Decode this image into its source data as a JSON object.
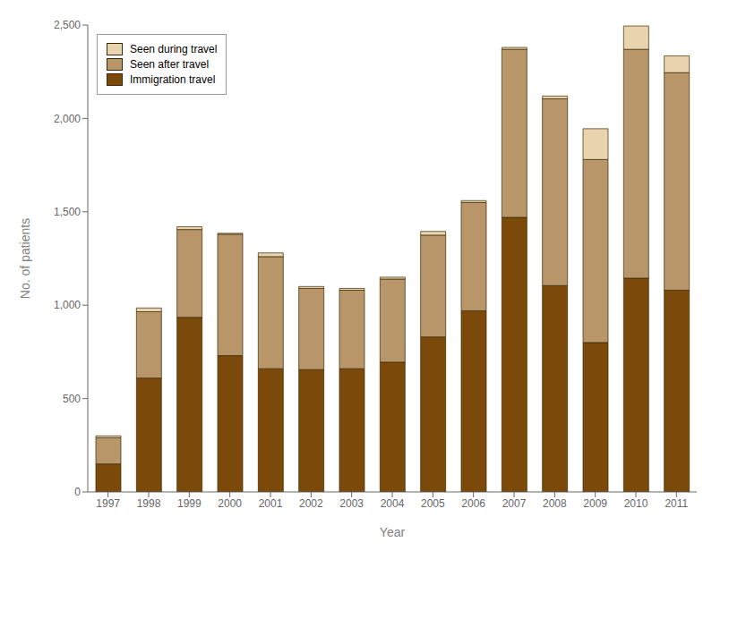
{
  "chart_data": {
    "type": "bar",
    "stacked": true,
    "xlabel": "Year",
    "ylabel": "No. of patients",
    "categories": [
      "1997",
      "1998",
      "1999",
      "2000",
      "2001",
      "2002",
      "2003",
      "2004",
      "2005",
      "2006",
      "2007",
      "2008",
      "2009",
      "2010",
      "2011"
    ],
    "series": [
      {
        "name": "Immigration travel",
        "color": "#7B4A0A",
        "values": [
          150,
          610,
          935,
          730,
          660,
          655,
          660,
          695,
          830,
          970,
          1470,
          1105,
          800,
          1145,
          1080
        ]
      },
      {
        "name": "Seen after travel",
        "color": "#B8966A",
        "values": [
          140,
          355,
          470,
          650,
          600,
          435,
          420,
          445,
          545,
          580,
          900,
          1000,
          980,
          1225,
          1165
        ]
      },
      {
        "name": "Seen during travel",
        "color": "#E8D5B0",
        "values": [
          10,
          20,
          15,
          5,
          20,
          10,
          10,
          10,
          20,
          10,
          10,
          15,
          165,
          125,
          90
        ]
      }
    ],
    "ylim": [
      0,
      2500
    ],
    "yticks": [
      0,
      500,
      {
        "value": 1000,
        "label": "1,000"
      },
      {
        "value": 1500,
        "label": "1,500"
      },
      {
        "value": 2000,
        "label": "2,000"
      },
      {
        "value": 2500,
        "label": "2,500"
      }
    ],
    "grid": false,
    "legend": "upper left"
  }
}
